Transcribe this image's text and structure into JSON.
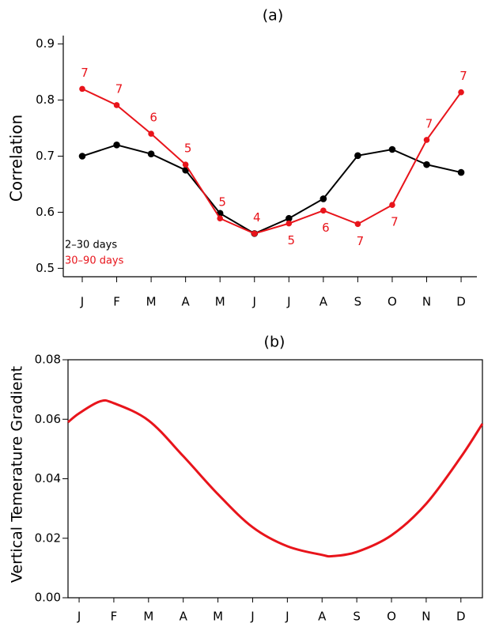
{
  "chart_data": [
    {
      "type": "line",
      "title": "(a)",
      "ylabel": "Correlation",
      "categories": [
        "J",
        "F",
        "M",
        "A",
        "M",
        "J",
        "J",
        "A",
        "S",
        "O",
        "N",
        "D"
      ],
      "ylim": [
        0.485,
        0.915
      ],
      "yticks": [
        0.5,
        0.6,
        0.7,
        0.8,
        0.9
      ],
      "series": [
        {
          "name": "2–30 days",
          "color": "#000000",
          "values": [
            0.7,
            0.72,
            0.704,
            0.675,
            0.598,
            0.562,
            0.589,
            0.624,
            0.701,
            0.712,
            0.685,
            0.671
          ]
        },
        {
          "name": "30–90 days",
          "color": "#e8141b",
          "values": [
            0.82,
            0.791,
            0.74,
            0.685,
            0.589,
            0.562,
            0.58,
            0.603,
            0.579,
            0.613,
            0.729,
            0.814
          ],
          "annotations": [
            "7",
            "7",
            "6",
            "5",
            "5",
            "4",
            "5",
            "6",
            "7",
            "7",
            "7",
            "7"
          ]
        }
      ]
    },
    {
      "type": "curve",
      "title": "(b)",
      "ylabel": "Vertical Temerature Gradient",
      "xlim": [
        -0.32,
        11.62
      ],
      "xticks": [
        {
          "value": 0,
          "label": "J"
        },
        {
          "value": 1,
          "label": "F"
        },
        {
          "value": 2,
          "label": "M"
        },
        {
          "value": 3,
          "label": "A"
        },
        {
          "value": 4,
          "label": "M"
        },
        {
          "value": 5,
          "label": "J"
        },
        {
          "value": 6,
          "label": "J"
        },
        {
          "value": 7,
          "label": "A"
        },
        {
          "value": 8,
          "label": "S"
        },
        {
          "value": 9,
          "label": "O"
        },
        {
          "value": 10,
          "label": "N"
        },
        {
          "value": 11,
          "label": "D"
        }
      ],
      "ylim": [
        0,
        0.08
      ],
      "yticks": [
        {
          "value": 0,
          "label": "0.00"
        },
        0.02,
        0.04,
        0.06,
        0.08
      ],
      "series": [
        {
          "color": "#e8141b",
          "x": [
            -0.32,
            0,
            0.6,
            1,
            2,
            3,
            4,
            5,
            6,
            7,
            7.3,
            8,
            9,
            10,
            11,
            11.62
          ],
          "values": [
            0.059,
            0.062,
            0.066,
            0.0654,
            0.0596,
            0.0476,
            0.0348,
            0.0237,
            0.0173,
            0.0144,
            0.014,
            0.0154,
            0.021,
            0.0316,
            0.0473,
            0.0585
          ]
        }
      ]
    }
  ]
}
